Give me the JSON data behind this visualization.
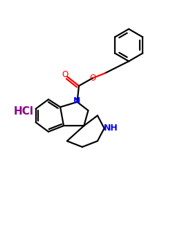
{
  "background_color": "#ffffff",
  "bond_color": "#000000",
  "N_color": "#0000ff",
  "O_color": "#ff0000",
  "HCl_color": "#8b008b",
  "line_width": 1.6,
  "figsize": [
    2.5,
    3.5
  ],
  "dpi": 100,
  "xlim": [
    0,
    10
  ],
  "ylim": [
    0,
    14
  ]
}
